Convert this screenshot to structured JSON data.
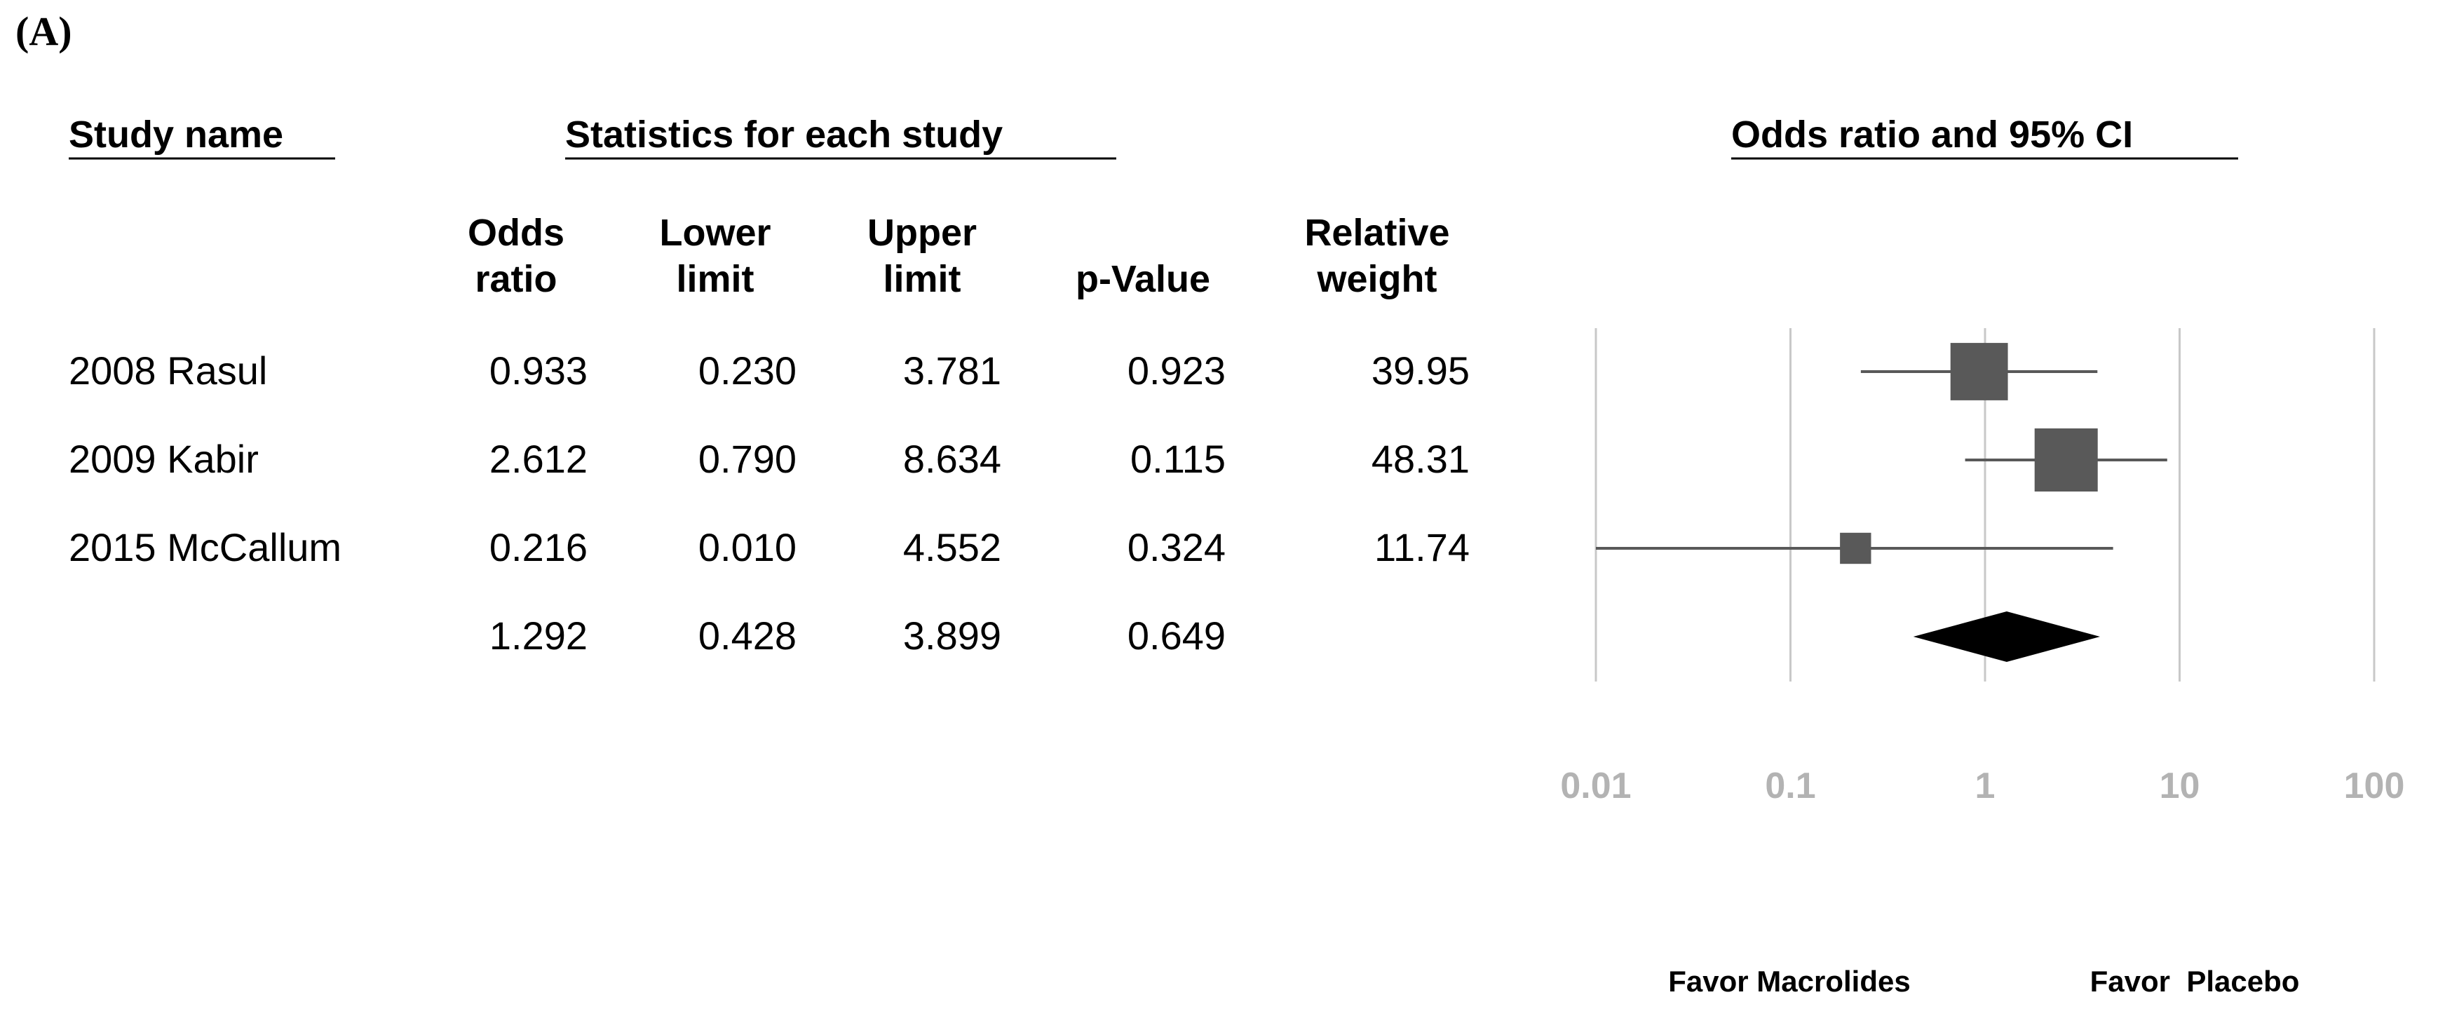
{
  "panel_label": "(A)",
  "headers": {
    "study": "Study name",
    "statistics": "Statistics for each study",
    "plot": "Odds ratio and 95% CI"
  },
  "columns": [
    {
      "key": "or",
      "line1": "Odds",
      "line2": "ratio"
    },
    {
      "key": "lower",
      "line1": "Lower",
      "line2": "limit"
    },
    {
      "key": "upper",
      "line1": "Upper",
      "line2": "limit"
    },
    {
      "key": "p",
      "line1": "",
      "line2": "p-Value"
    },
    {
      "key": "weight",
      "line1": "Relative",
      "line2": "weight"
    }
  ],
  "rows": [
    {
      "study": "2008 Rasul",
      "or": "0.933",
      "lower": "0.230",
      "upper": "3.781",
      "p": "0.923",
      "weight": "39.95"
    },
    {
      "study": "2009 Kabir",
      "or": "2.612",
      "lower": "0.790",
      "upper": "8.634",
      "p": "0.115",
      "weight": "48.31"
    },
    {
      "study": "2015 McCallum",
      "or": "0.216",
      "lower": "0.010",
      "upper": "4.552",
      "p": "0.324",
      "weight": "11.74"
    }
  ],
  "summary": {
    "or": "1.292",
    "lower": "0.428",
    "upper": "3.899",
    "p": "0.649"
  },
  "favor_left": "Favor Macrolides",
  "favor_right": "Favor  Placebo",
  "colors": {
    "marker": "#595959",
    "ci_line": "#595959",
    "summary": "#000000",
    "grid": "#c8c8c8",
    "tick_label": "#b3b3b3"
  },
  "chart_data": {
    "type": "forest",
    "x_scale": "log",
    "xlim": [
      0.01,
      100
    ],
    "ticks": [
      0.01,
      0.1,
      1,
      10,
      100
    ],
    "tick_labels": [
      "0.01",
      "0.1",
      "1",
      "10",
      "100"
    ],
    "grid": true,
    "series": [
      {
        "study": "2008 Rasul",
        "or": 0.933,
        "lower": 0.23,
        "upper": 3.781,
        "weight": 39.95
      },
      {
        "study": "2009 Kabir",
        "or": 2.612,
        "lower": 0.79,
        "upper": 8.634,
        "weight": 48.31
      },
      {
        "study": "2015 McCallum",
        "or": 0.216,
        "lower": 0.01,
        "upper": 4.552,
        "weight": 11.74
      }
    ],
    "summary": {
      "or": 1.292,
      "lower": 0.428,
      "upper": 3.899
    }
  }
}
